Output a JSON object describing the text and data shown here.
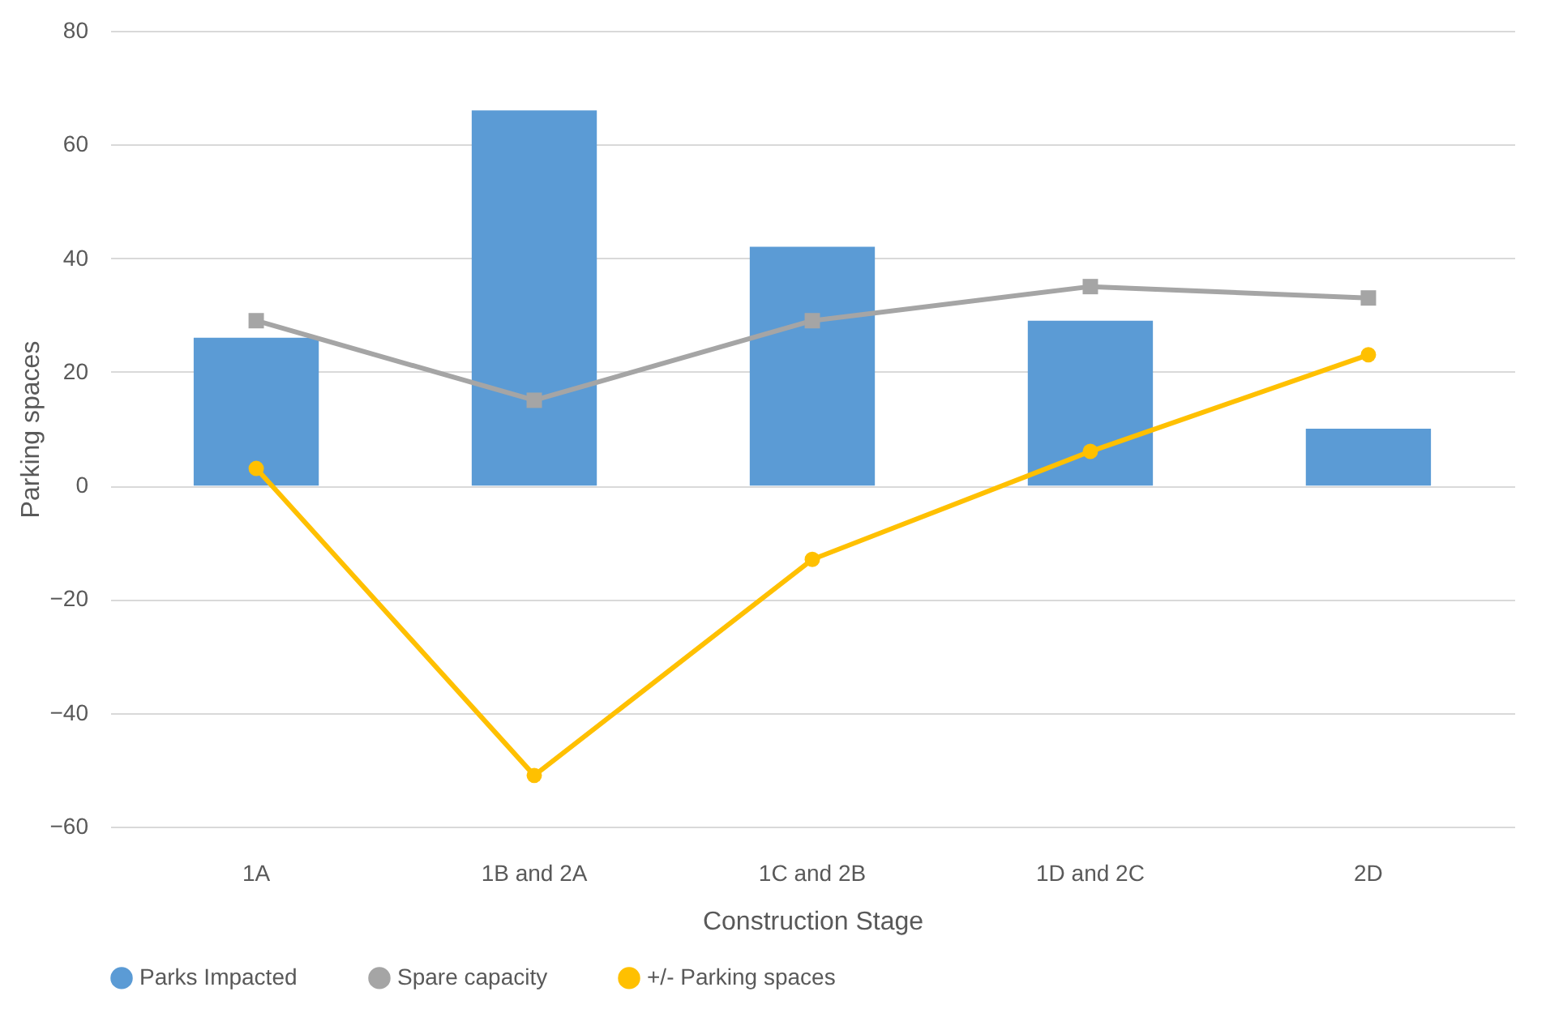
{
  "chart_data": {
    "type": "bar",
    "xlabel": "Construction Stage",
    "ylabel": "Parking spaces",
    "categories": [
      "1A",
      "1B and 2A",
      "1C and 2B",
      "1D and 2C",
      "2D"
    ],
    "ylim": [
      -60,
      80
    ],
    "yticks": [
      -60,
      -40,
      -20,
      0,
      20,
      40,
      60,
      80
    ],
    "grid": "y",
    "legend": "bottom",
    "series": [
      {
        "name": "Parks Impacted",
        "color": "#5b9bd5",
        "values": [
          26,
          66,
          42,
          29,
          10
        ]
      },
      {
        "name": "Spare capacity",
        "type": "line",
        "marker": "square",
        "color": "#a5a5a5",
        "values": [
          29,
          15,
          29,
          35,
          33
        ]
      },
      {
        "name": "+/- Parking spaces",
        "type": "line",
        "marker": "circle",
        "color": "#ffc000",
        "values": [
          3,
          -51,
          -13,
          6,
          23
        ]
      }
    ]
  }
}
